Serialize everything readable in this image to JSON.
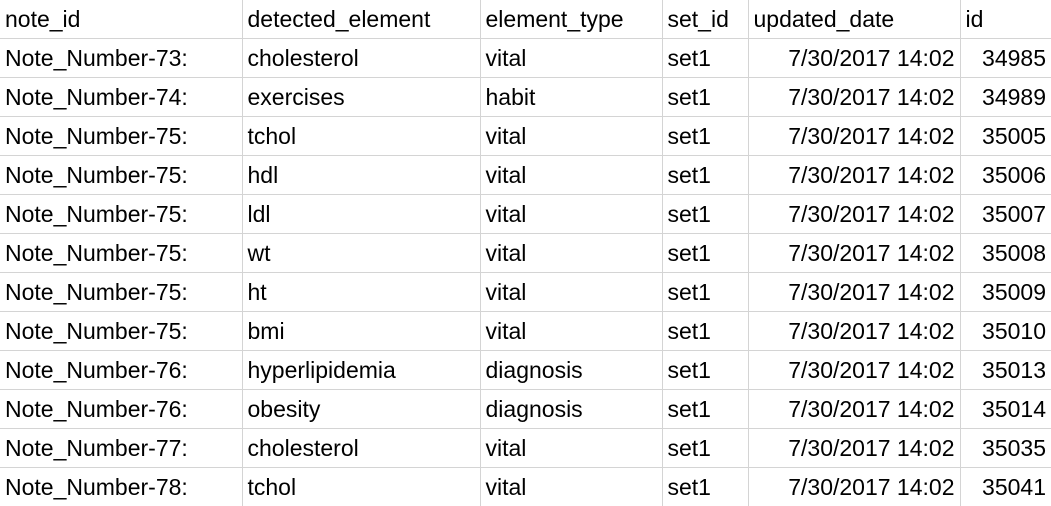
{
  "columns": [
    "note_id",
    "detected_element",
    "element_type",
    "set_id",
    "updated_date",
    "id"
  ],
  "rows": [
    [
      "Note_Number-73:",
      "cholesterol",
      "vital",
      "set1",
      "7/30/2017 14:02",
      "34985"
    ],
    [
      "Note_Number-74:",
      "exercises",
      "habit",
      "set1",
      "7/30/2017 14:02",
      "34989"
    ],
    [
      "Note_Number-75:",
      "tchol",
      "vital",
      "set1",
      "7/30/2017 14:02",
      "35005"
    ],
    [
      "Note_Number-75:",
      "hdl",
      "vital",
      "set1",
      "7/30/2017 14:02",
      "35006"
    ],
    [
      "Note_Number-75:",
      "ldl",
      "vital",
      "set1",
      "7/30/2017 14:02",
      "35007"
    ],
    [
      "Note_Number-75:",
      "wt",
      "vital",
      "set1",
      "7/30/2017 14:02",
      "35008"
    ],
    [
      "Note_Number-75:",
      "ht",
      "vital",
      "set1",
      "7/30/2017 14:02",
      "35009"
    ],
    [
      "Note_Number-75:",
      "bmi",
      "vital",
      "set1",
      "7/30/2017 14:02",
      "35010"
    ],
    [
      "Note_Number-76:",
      "hyperlipidemia",
      "diagnosis",
      "set1",
      "7/30/2017 14:02",
      "35013"
    ],
    [
      "Note_Number-76:",
      "obesity",
      "diagnosis",
      "set1",
      "7/30/2017 14:02",
      "35014"
    ],
    [
      "Note_Number-77:",
      "cholesterol",
      "vital",
      "set1",
      "7/30/2017 14:02",
      "35035"
    ],
    [
      "Note_Number-78:",
      "tchol",
      "vital",
      "set1",
      "7/30/2017 14:02",
      "35041"
    ]
  ],
  "gridline_color": "#d4d4d4"
}
